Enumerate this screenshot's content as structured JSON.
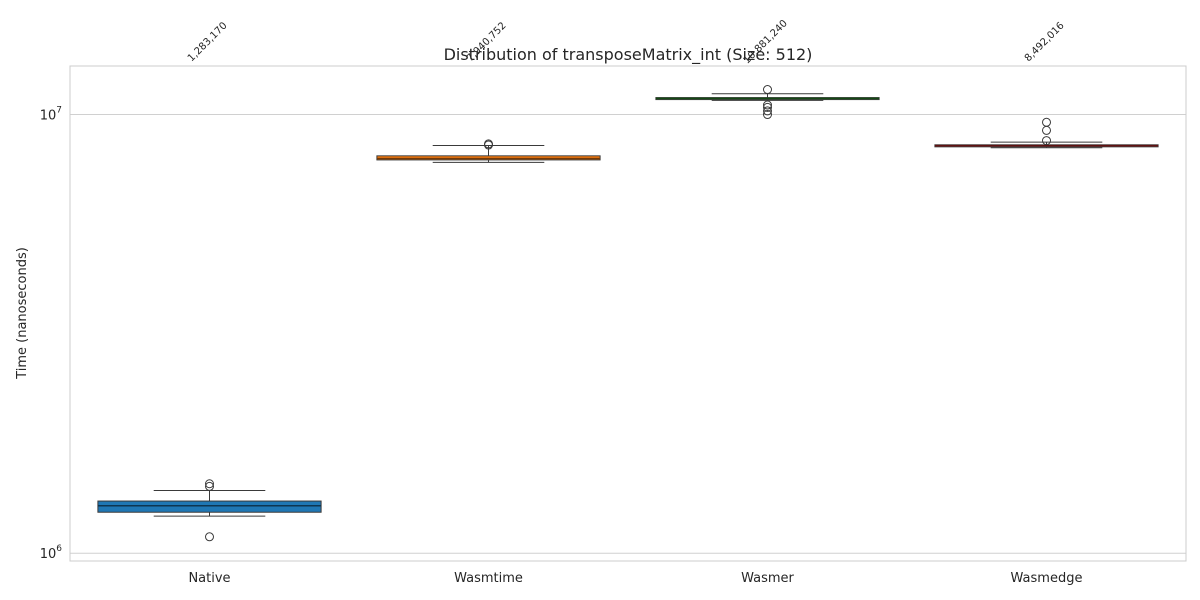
{
  "chart_data": {
    "type": "box",
    "title": "Distribution of transposeMatrix_int (Size: 512)",
    "xlabel": "",
    "ylabel": "Time (nanoseconds)",
    "yscale": "log",
    "ylim": [
      960000,
      12900000
    ],
    "yticks": [
      {
        "value": 1000000,
        "base": "10",
        "exp": "6"
      },
      {
        "value": 10000000,
        "base": "10",
        "exp": "7"
      }
    ],
    "grid": true,
    "categories": [
      "Native",
      "Wasmtime",
      "Wasmer",
      "Wasmedge"
    ],
    "series": [
      {
        "category": "Native",
        "color": "#1f77b4",
        "whisker_low": 1215000,
        "q1": 1240000,
        "median": 1283170,
        "q3": 1315000,
        "whisker_high": 1390000,
        "outliers": [
          1090000,
          1420000,
          1440000
        ],
        "median_label": "1,283,170"
      },
      {
        "category": "Wasmtime",
        "color": "#ff7f0e",
        "whisker_low": 7780000,
        "q1": 7880000,
        "median": 7940752,
        "q3": 8050000,
        "whisker_high": 8500000,
        "outliers": [
          8520000,
          8570000
        ],
        "median_label": "7,940,752"
      },
      {
        "category": "Wasmer",
        "color": "#2ca02c",
        "whisker_low": 10770000,
        "q1": 10830000,
        "median": 10881240,
        "q3": 10930000,
        "whisker_high": 11150000,
        "outliers": [
          10000000,
          10190000,
          10380000,
          10510000,
          11400000
        ],
        "median_label": "10,881,240"
      },
      {
        "category": "Wasmedge",
        "color": "#d62728",
        "whisker_low": 8400000,
        "q1": 8440000,
        "median": 8492016,
        "q3": 8530000,
        "whisker_high": 8650000,
        "outliers": [
          8720000,
          9200000,
          9600000
        ],
        "median_label": "8,492,016"
      }
    ]
  }
}
